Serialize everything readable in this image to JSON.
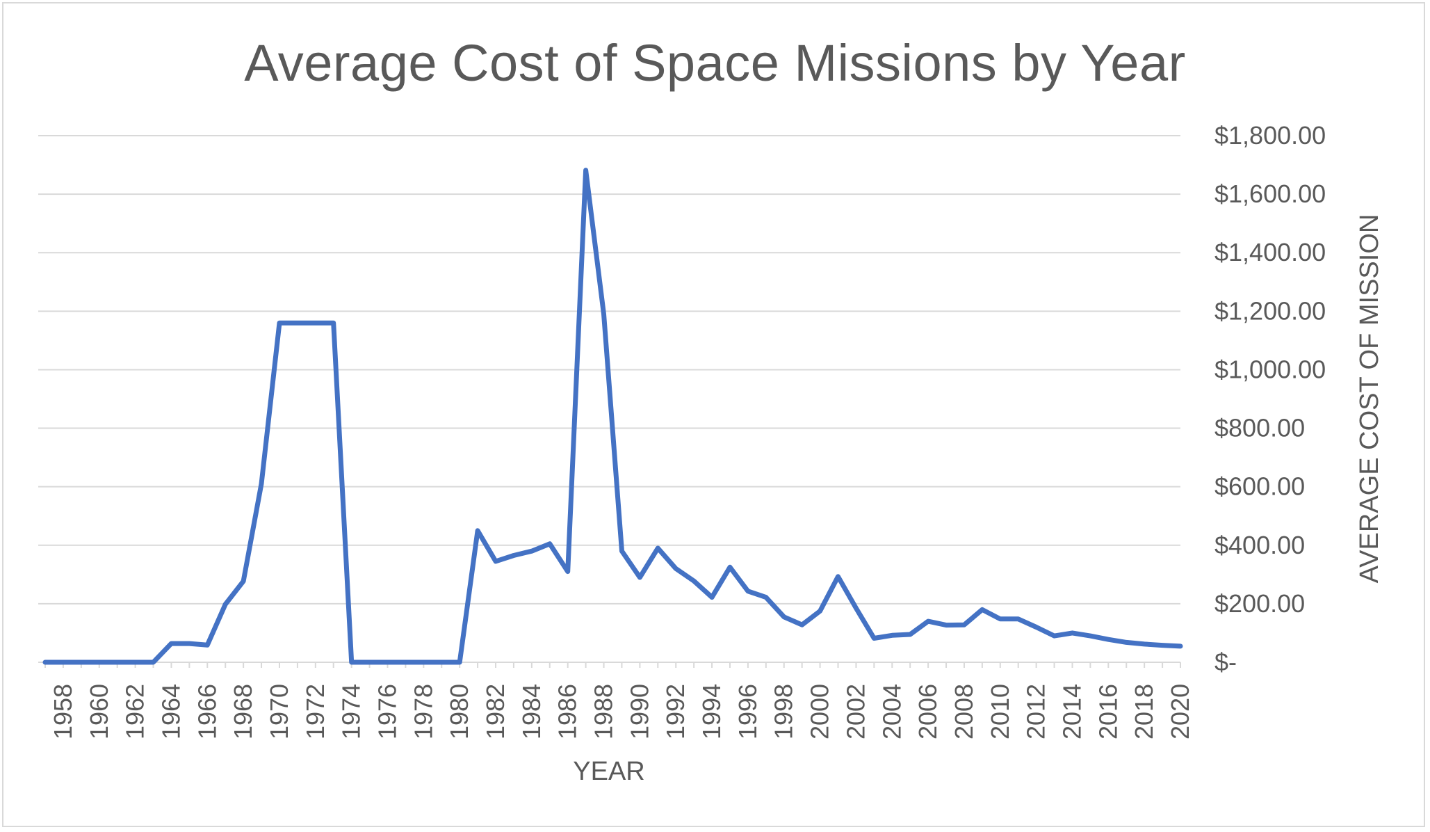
{
  "chart_data": {
    "type": "line",
    "title": "Average Cost of Space Missions by Year",
    "xlabel": "YEAR",
    "ylabel": "AVERAGE COST OF MISSION",
    "y_axis_position": "right",
    "grid": true,
    "ylim": [
      0,
      1800
    ],
    "y_ticks": [
      {
        "value": 0,
        "label": "$-"
      },
      {
        "value": 200,
        "label": "$200.00"
      },
      {
        "value": 400,
        "label": "$400.00"
      },
      {
        "value": 600,
        "label": "$600.00"
      },
      {
        "value": 800,
        "label": "$800.00"
      },
      {
        "value": 1000,
        "label": "$1,000.00"
      },
      {
        "value": 1200,
        "label": "$1,200.00"
      },
      {
        "value": 1400,
        "label": "$1,400.00"
      },
      {
        "value": 1600,
        "label": "$1,600.00"
      },
      {
        "value": 1800,
        "label": "$1,800.00"
      }
    ],
    "x_tick_labels": [
      "1958",
      "1960",
      "1962",
      "1964",
      "1966",
      "1968",
      "1970",
      "1972",
      "1974",
      "1976",
      "1978",
      "1980",
      "1982",
      "1984",
      "1986",
      "1988",
      "1990",
      "1992",
      "1994",
      "1996",
      "1998",
      "2000",
      "2002",
      "2004",
      "2006",
      "2008",
      "2010",
      "2012",
      "2014",
      "2016",
      "2018",
      "2020"
    ],
    "colors": {
      "line": "#4472C4",
      "grid": "#d9d9d9",
      "text": "#595959"
    },
    "series": [
      {
        "x": [
          1957,
          1958,
          1959,
          1960,
          1961,
          1962,
          1963,
          1964,
          1965,
          1966,
          1967,
          1968,
          1969,
          1970,
          1971,
          1972,
          1973,
          1974,
          1975,
          1976,
          1977,
          1978,
          1979,
          1980,
          1981,
          1982,
          1983,
          1984,
          1985,
          1986,
          1987,
          1988,
          1989,
          1990,
          1991,
          1992,
          1993,
          1994,
          1995,
          1996,
          1997,
          1998,
          1999,
          2000,
          2001,
          2002,
          2003,
          2004,
          2005,
          2006,
          2007,
          2008,
          2009,
          2010,
          2011,
          2012,
          2013,
          2014,
          2015,
          2016,
          2017,
          2018,
          2019,
          2020
        ],
        "values": [
          0,
          0,
          0,
          0,
          0,
          0,
          0,
          64,
          64,
          59,
          198,
          277,
          610,
          1160,
          1160,
          1160,
          1160,
          0,
          0,
          0,
          0,
          0,
          0,
          0,
          450,
          345,
          365,
          380,
          405,
          310,
          1682,
          1190,
          380,
          290,
          390,
          320,
          278,
          222,
          325,
          243,
          222,
          155,
          128,
          175,
          293,
          185,
          82,
          92,
          95,
          140,
          127,
          128,
          180,
          148,
          148,
          120,
          90,
          100,
          90,
          78,
          68,
          62,
          58,
          55
        ]
      }
    ]
  }
}
